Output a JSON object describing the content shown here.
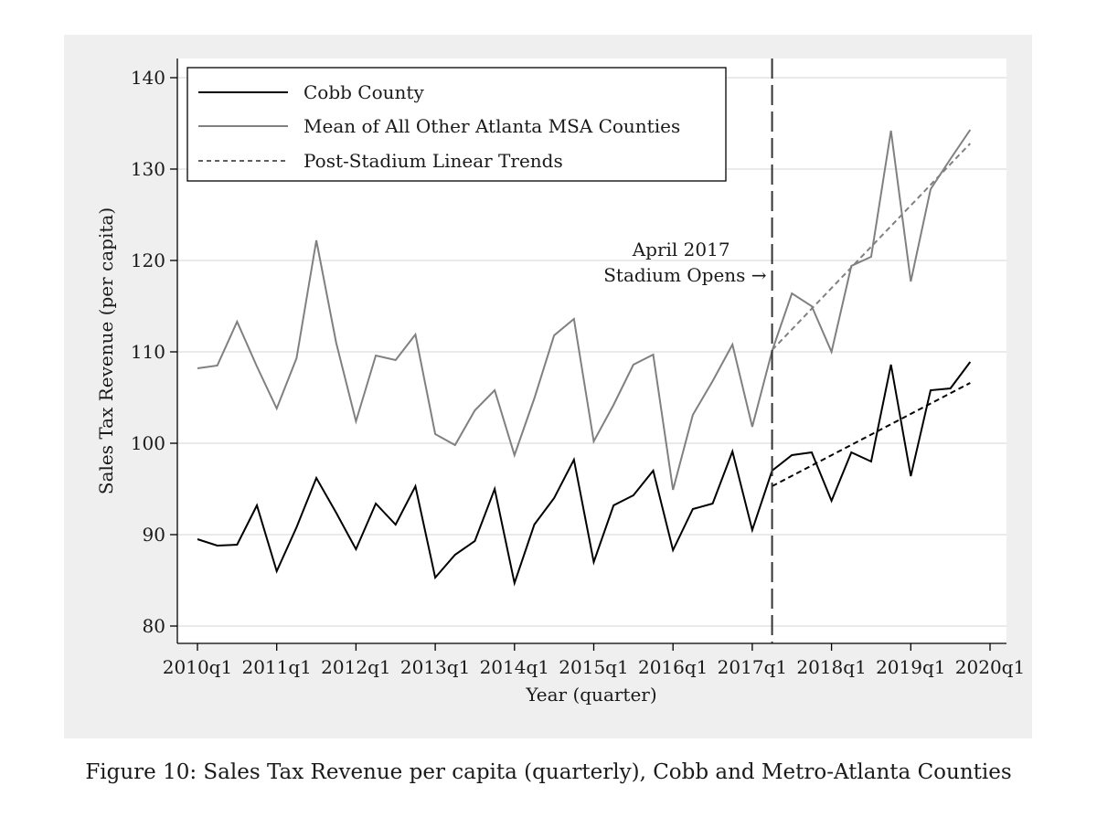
{
  "caption": "Figure 10: Sales Tax Revenue per capita (quarterly), Cobb and Metro-Atlanta Counties",
  "chart_data": {
    "type": "line",
    "xlabel": "Year (quarter)",
    "ylabel": "Sales Tax Revenue (per capita)",
    "ylim": [
      80,
      140
    ],
    "yticks": [
      80,
      90,
      100,
      110,
      120,
      130,
      140
    ],
    "xlim": [
      "2010q1",
      "2020q1"
    ],
    "xticks": [
      "2010q1",
      "2011q1",
      "2012q1",
      "2013q1",
      "2014q1",
      "2015q1",
      "2016q1",
      "2017q1",
      "2018q1",
      "2019q1",
      "2020q1"
    ],
    "grid": true,
    "legend_position": "top-left",
    "x": [
      "2010q1",
      "2010q2",
      "2010q3",
      "2010q4",
      "2011q1",
      "2011q2",
      "2011q3",
      "2011q4",
      "2012q1",
      "2012q2",
      "2012q3",
      "2012q4",
      "2013q1",
      "2013q2",
      "2013q3",
      "2013q4",
      "2014q1",
      "2014q2",
      "2014q3",
      "2014q4",
      "2015q1",
      "2015q2",
      "2015q3",
      "2015q4",
      "2016q1",
      "2016q2",
      "2016q3",
      "2016q4",
      "2017q1",
      "2017q2",
      "2017q3",
      "2017q4",
      "2018q1",
      "2018q2",
      "2018q3",
      "2018q4",
      "2019q1",
      "2019q2",
      "2019q3",
      "2019q4"
    ],
    "series": [
      {
        "name": "Cobb County",
        "color": "#000000",
        "style": "solid",
        "values": [
          89.5,
          88.8,
          88.9,
          93.2,
          86.0,
          90.8,
          96.2,
          92.4,
          88.4,
          93.4,
          91.1,
          95.3,
          85.3,
          87.8,
          89.3,
          95.0,
          84.7,
          91.1,
          94.0,
          98.2,
          87.0,
          93.2,
          94.3,
          97.0,
          88.3,
          92.8,
          93.4,
          99.1,
          90.5,
          97.0,
          98.7,
          99.0,
          93.7,
          99.0,
          98.0,
          108.6,
          96.4,
          105.8,
          106.0,
          108.9
        ]
      },
      {
        "name": "Mean of All Other Atlanta MSA Counties",
        "color": "#808080",
        "style": "solid",
        "values": [
          108.2,
          108.5,
          113.3,
          108.4,
          103.8,
          109.3,
          122.2,
          111.0,
          102.4,
          109.6,
          109.1,
          111.9,
          101.0,
          99.8,
          103.6,
          105.8,
          98.7,
          104.9,
          111.8,
          113.6,
          100.2,
          104.2,
          108.6,
          109.7,
          94.9,
          103.1,
          106.8,
          110.8,
          101.8,
          110.1,
          116.4,
          115.0,
          110.0,
          119.4,
          120.4,
          134.2,
          117.7,
          127.8,
          131.1,
          134.3
        ]
      },
      {
        "name": "Post-Stadium Linear Trends",
        "color": "#000000",
        "style": "dashed",
        "trends": [
          {
            "x": [
              "2017q2",
              "2019q4"
            ],
            "values": [
              95.3,
              106.6
            ],
            "color": "#000000"
          },
          {
            "x": [
              "2017q2",
              "2019q4"
            ],
            "values": [
              110.2,
              132.8
            ],
            "color": "#808080"
          }
        ]
      }
    ],
    "annotations": [
      {
        "text_line1": "April 2017",
        "text_line2": "Stadium Opens →",
        "x": "2017q2"
      }
    ]
  }
}
